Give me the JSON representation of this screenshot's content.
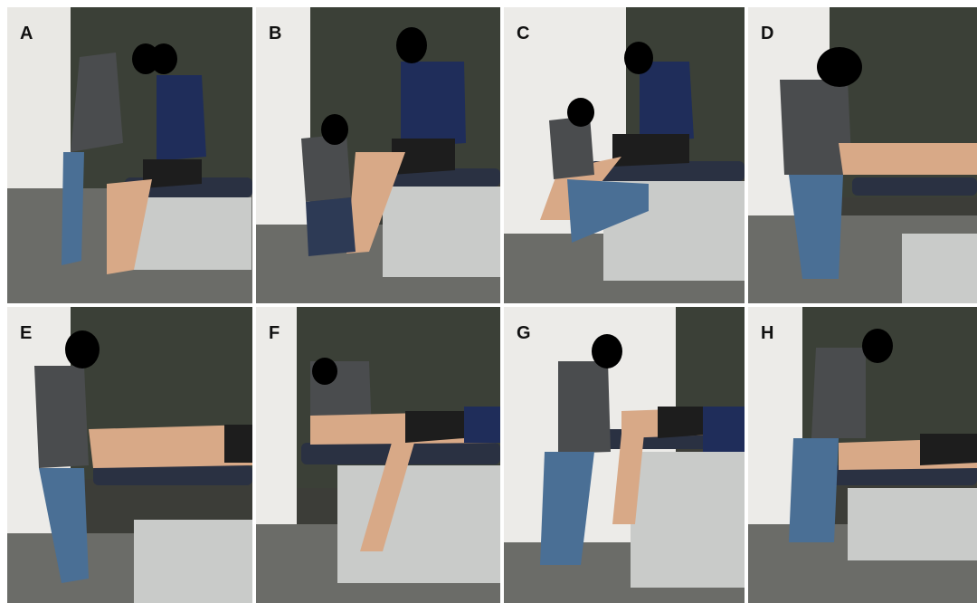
{
  "figure": {
    "panels": [
      {
        "label": "A"
      },
      {
        "label": "B"
      },
      {
        "label": "C"
      },
      {
        "label": "D"
      },
      {
        "label": "E"
      },
      {
        "label": "F"
      },
      {
        "label": "G"
      },
      {
        "label": "H"
      }
    ]
  },
  "colors": {
    "wall_white": "#ecebe8",
    "wall_dark": "#3b4037",
    "floor": "#6e6f6b",
    "table_top": "#2a3142",
    "table_frame": "#c9cbc9",
    "shirt_grey": "#4a4c4e",
    "shirt_navy": "#1f2d5a",
    "jeans": "#4a6f95",
    "shorts": "#1d1d1d",
    "skin": "#d8a987",
    "face_mask": "#000000"
  }
}
